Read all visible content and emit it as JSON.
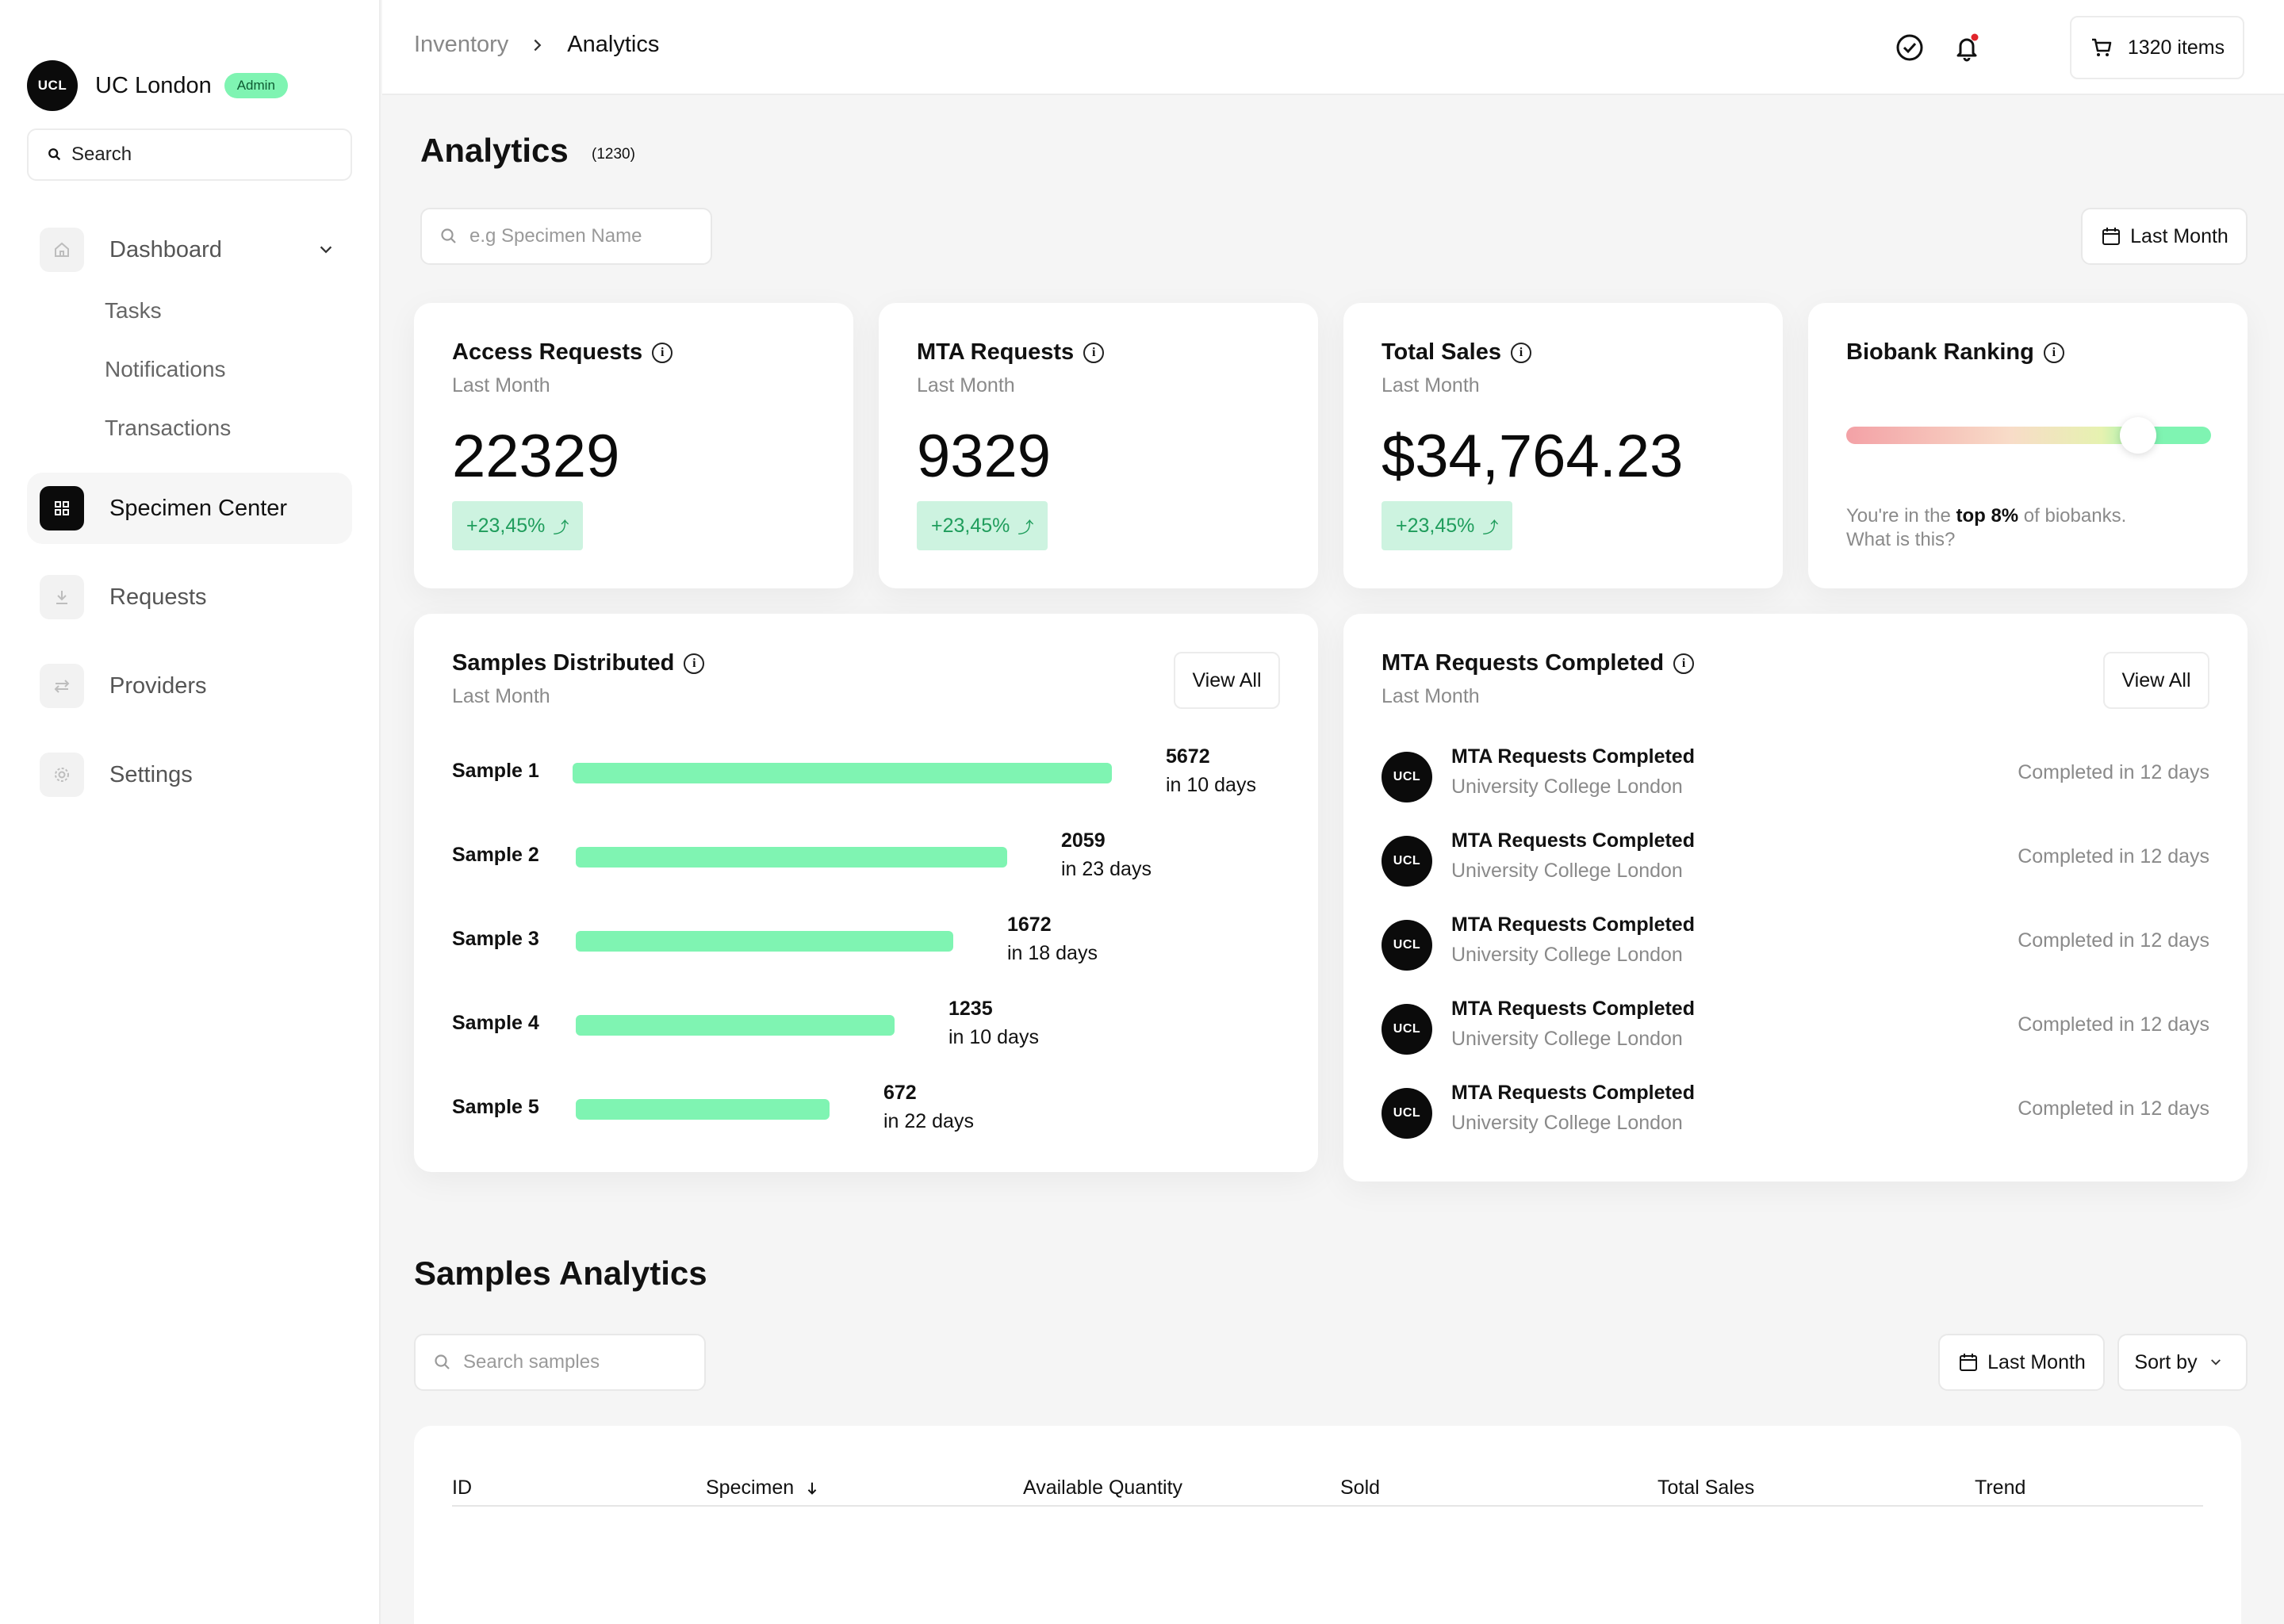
{
  "sidebar": {
    "brand": {
      "logo_text": "UCL",
      "name": "UC London",
      "badge": "Admin"
    },
    "search_placeholder": "Search",
    "nav": {
      "dashboard": "Dashboard",
      "sub": [
        "Tasks",
        "Notifications",
        "Transactions"
      ],
      "specimen_center": "Specimen Center",
      "requests": "Requests",
      "providers": "Providers",
      "settings": "Settings"
    }
  },
  "topbar": {
    "breadcrumb": [
      "Inventory",
      "Analytics"
    ],
    "cart_label": "1320 items"
  },
  "page": {
    "title": "Analytics",
    "count": "(1230)",
    "search_placeholder": "e.g Specimen Name",
    "date_filter": "Last Month"
  },
  "stats": [
    {
      "title": "Access Requests",
      "sub": "Last Month",
      "value": "22329",
      "delta": "+23,45%"
    },
    {
      "title": "MTA Requests",
      "sub": "Last Month",
      "value": "9329",
      "delta": "+23,45%"
    },
    {
      "title": "Total Sales",
      "sub": "Last Month",
      "value": "$34,764.23",
      "delta": "+23,45%"
    }
  ],
  "ranking": {
    "title": "Biobank Ranking",
    "level_percent": 80,
    "text_before": "You're in the ",
    "text_bold": "top 8%",
    "text_after": " of biobanks.",
    "link": "What is this?"
  },
  "samples_distributed": {
    "title": "Samples Distributed",
    "sub": "Last Month",
    "view_all": "View All",
    "rows": [
      {
        "label": "Sample 1",
        "value": "5672",
        "days": "in 10 days"
      },
      {
        "label": "Sample 2",
        "value": "2059",
        "days": "in 23 days"
      },
      {
        "label": "Sample 3",
        "value": "1672",
        "days": "in 18 days"
      },
      {
        "label": "Sample 4",
        "value": "1235",
        "days": "in 10 days"
      },
      {
        "label": "Sample 5",
        "value": "672",
        "days": "in 22 days"
      }
    ]
  },
  "mta_completed": {
    "title": "MTA Requests Completed",
    "sub": "Last Month",
    "view_all": "View All",
    "rows": [
      {
        "logo": "UCL",
        "title": "MTA Requests Completed",
        "org": "University College London",
        "status": "Completed in 12 days"
      },
      {
        "logo": "UCL",
        "title": "MTA Requests Completed",
        "org": "University College London",
        "status": "Completed in 12 days"
      },
      {
        "logo": "UCL",
        "title": "MTA Requests Completed",
        "org": "University College London",
        "status": "Completed in 12 days"
      },
      {
        "logo": "UCL",
        "title": "MTA Requests Completed",
        "org": "University College London",
        "status": "Completed in 12 days"
      },
      {
        "logo": "UCL",
        "title": "MTA Requests Completed",
        "org": "University College London",
        "status": "Completed in 12 days"
      }
    ]
  },
  "samples_analytics": {
    "title": "Samples Analytics",
    "search_placeholder": "Search samples",
    "date_filter": "Last Month",
    "sort_label": "Sort by",
    "columns": [
      "ID",
      "Specimen",
      "Available Quantity",
      "Sold",
      "Total Sales",
      "Trend"
    ]
  },
  "colors": {
    "accent_green": "#7ff4b2",
    "badge_bg": "#cdf3e0",
    "badge_text": "#1f9d5c",
    "notification_dot": "#e0242b"
  },
  "icons": [
    "search-icon",
    "home-icon",
    "chevron-down-icon",
    "grid-icon",
    "download-icon",
    "arrows-icon",
    "gear-icon",
    "check-circle-icon",
    "bell-icon",
    "cart-icon",
    "calendar-icon",
    "info-icon",
    "trend-up-icon",
    "arrow-down-icon"
  ]
}
